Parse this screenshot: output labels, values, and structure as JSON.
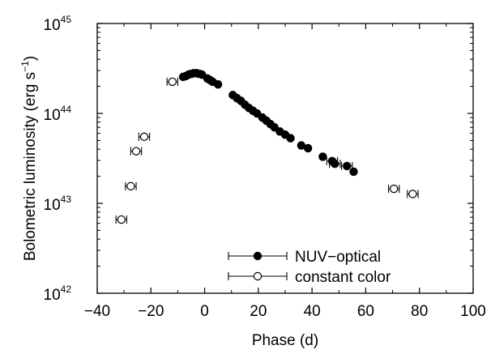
{
  "chart_data": {
    "type": "scatter",
    "xlabel": "Phase (d)",
    "ylabel_main": "Bolometric luminosity (erg s",
    "ylabel_sup": "−1",
    "ylabel_end": ")",
    "xlim": [
      -40,
      100
    ],
    "xticks": [
      -40,
      -20,
      0,
      20,
      40,
      60,
      80,
      100
    ],
    "xtick_labels": [
      "−40",
      "−20",
      "0",
      "20",
      "40",
      "60",
      "80",
      "100"
    ],
    "ylog": true,
    "ylim": [
      1e+42,
      1e+45
    ],
    "yticks": [
      {
        "base": "10",
        "exp": "42",
        "value": 1e+42
      },
      {
        "base": "10",
        "exp": "43",
        "value": 1e+43
      },
      {
        "base": "10",
        "exp": "44",
        "value": 1e+44
      },
      {
        "base": "10",
        "exp": "45",
        "value": 1e+45
      }
    ],
    "grid": false,
    "legend_position": "bottom-right",
    "series": [
      {
        "name": "NUV−optical",
        "marker": "filled-circle",
        "points": [
          [
            -8,
            2.55e+44,
            0.5
          ],
          [
            -7,
            2.6e+44,
            0.5
          ],
          [
            -6,
            2.7e+44,
            0.5
          ],
          [
            -5,
            2.75e+44,
            0.5
          ],
          [
            -4,
            2.8e+44,
            0.5
          ],
          [
            -3,
            2.8e+44,
            0.5
          ],
          [
            -2,
            2.75e+44,
            0.5
          ],
          [
            -1,
            2.7e+44,
            0.5
          ],
          [
            1,
            2.45e+44,
            0.5
          ],
          [
            2,
            2.35e+44,
            0.5
          ],
          [
            3,
            2.25e+44,
            0.5
          ],
          [
            5,
            2.1e+44,
            0.5
          ],
          [
            10.5,
            1.6e+44,
            0.5
          ],
          [
            12,
            1.48e+44,
            0.5
          ],
          [
            13.5,
            1.38e+44,
            0.5
          ],
          [
            15,
            1.25e+44,
            0.5
          ],
          [
            16.5,
            1.15e+44,
            0.5
          ],
          [
            18,
            1.07e+44,
            0.5
          ],
          [
            19.5,
            1e+44,
            0.5
          ],
          [
            21.5,
            9e+43,
            0.5
          ],
          [
            23,
            8.3e+43,
            0.5
          ],
          [
            24.5,
            7.6e+43,
            0.5
          ],
          [
            26,
            7e+43,
            0.5
          ],
          [
            28,
            6.3e+43,
            0.5
          ],
          [
            30,
            5.8e+43,
            0.5
          ],
          [
            32,
            5.3e+43,
            0.5
          ],
          [
            36,
            4.4e+43,
            0.5
          ],
          [
            38.5,
            4.1e+43,
            0.5
          ],
          [
            44,
            3.3e+43,
            0.5
          ],
          [
            47.5,
            2.95e+43,
            2.0
          ],
          [
            48.5,
            2.75e+43,
            2.0
          ],
          [
            53,
            2.6e+43,
            2.0
          ],
          [
            55.5,
            2.25e+43,
            0.5
          ]
        ]
      },
      {
        "name": "constant color",
        "marker": "open-circle",
        "points": [
          [
            -31,
            6.6e+42,
            2.0
          ],
          [
            -27.5,
            1.55e+43,
            2.0
          ],
          [
            -25.5,
            3.8e+43,
            2.0
          ],
          [
            -22.5,
            5.5e+43,
            2.0
          ],
          [
            -12,
            2.25e+44,
            2.0
          ],
          [
            70.5,
            1.45e+43,
            2.0
          ],
          [
            77.5,
            1.27e+43,
            2.0
          ]
        ]
      }
    ]
  }
}
